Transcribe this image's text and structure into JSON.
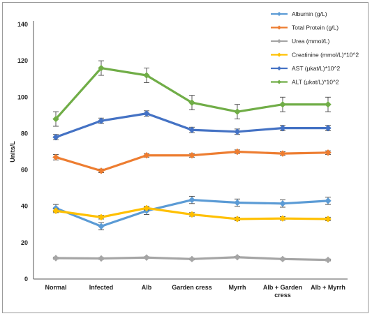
{
  "chart_data": {
    "type": "line",
    "ylabel": "Units/L",
    "xlabel": "",
    "ylim": [
      0,
      140
    ],
    "yticks": [
      0,
      20,
      40,
      60,
      80,
      100,
      120,
      140
    ],
    "categories": [
      "Normal",
      "Infected",
      "Alb",
      "Garden cress",
      "Myrrh",
      "Alb + Garden cress",
      "Alb + Myrrh"
    ],
    "legend_position": "top-right",
    "grid": false,
    "series": [
      {
        "name": "Albumin (g/L)",
        "color": "#5b9bd5",
        "values": [
          39,
          29,
          37.5,
          43.5,
          42,
          41.5,
          43
        ],
        "errors": [
          2,
          2,
          2,
          2,
          2,
          2,
          2
        ]
      },
      {
        "name": "Total Protein (g/L)",
        "color": "#ed7d31",
        "values": [
          67,
          59.5,
          68,
          68,
          70,
          69,
          69.5
        ],
        "errors": [
          1.5,
          1,
          1,
          1,
          1,
          1,
          1
        ]
      },
      {
        "name": "Urea (mmol/L)",
        "color": "#a5a5a5",
        "values": [
          11.5,
          11.3,
          11.8,
          11,
          12,
          11,
          10.5
        ],
        "errors": [
          0.5,
          0.5,
          0.5,
          0.5,
          0.5,
          0.5,
          0.5
        ]
      },
      {
        "name": "Creatinine (mmol/L)*10^2",
        "color": "#ffc000",
        "values": [
          37.5,
          34,
          39,
          35.5,
          33,
          33.3,
          33
        ],
        "errors": [
          1,
          1,
          1,
          1,
          1,
          1,
          1
        ]
      },
      {
        "name": "AST (µkat/L)*10^2",
        "color": "#4472c4",
        "values": [
          78,
          87,
          91,
          82,
          81,
          83,
          83
        ],
        "errors": [
          1.5,
          1.5,
          1.5,
          1.5,
          1.5,
          1.5,
          1.5
        ]
      },
      {
        "name": "ALT (µkat/L)*10^2",
        "color": "#70ad47",
        "values": [
          88,
          116,
          112,
          97,
          92,
          96,
          96
        ],
        "errors": [
          4,
          4,
          4,
          4,
          4,
          4,
          4
        ]
      }
    ]
  }
}
